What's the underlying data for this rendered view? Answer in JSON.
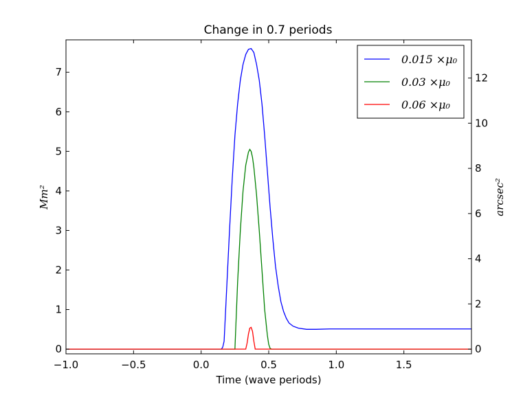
{
  "chart_data": {
    "type": "line",
    "title": "Change in 0.7 periods",
    "xlabel": "Time (wave periods)",
    "ylabel": "Mm²",
    "ylabel_right": "arcsec²",
    "xlim": [
      -1.0,
      2.0
    ],
    "ylim": [
      -0.12,
      7.82
    ],
    "ylim_right": [
      -0.21,
      13.69
    ],
    "x_ticks": [
      -1.0,
      -0.5,
      0.0,
      0.5,
      1.0,
      1.5
    ],
    "x_tick_labels": [
      "−1.0",
      "−0.5",
      "0.0",
      "0.5",
      "1.0",
      "1.5"
    ],
    "y_ticks": [
      0,
      1,
      2,
      3,
      4,
      5,
      6,
      7
    ],
    "y_tick_labels": [
      "0",
      "1",
      "2",
      "3",
      "4",
      "5",
      "6",
      "7"
    ],
    "y_right_ticks": [
      0,
      2,
      4,
      6,
      8,
      10,
      12
    ],
    "y_right_tick_labels": [
      "0",
      "2",
      "4",
      "6",
      "8",
      "10",
      "12"
    ],
    "grid": false,
    "legend_position": "top-right",
    "series": [
      {
        "name": "0.015 ×μ₀",
        "color": "#0000ff",
        "x": [
          -1.0,
          0.0,
          0.15,
          0.16,
          0.17,
          0.19,
          0.21,
          0.23,
          0.25,
          0.27,
          0.29,
          0.31,
          0.33,
          0.35,
          0.37,
          0.39,
          0.41,
          0.43,
          0.45,
          0.47,
          0.49,
          0.51,
          0.53,
          0.55,
          0.57,
          0.59,
          0.61,
          0.63,
          0.65,
          0.68,
          0.72,
          0.78,
          0.85,
          0.95,
          1.0,
          1.5,
          2.0
        ],
        "y": [
          0.0,
          0.0,
          0.0,
          0.05,
          0.2,
          1.6,
          3.0,
          4.3,
          5.4,
          6.2,
          6.8,
          7.2,
          7.45,
          7.58,
          7.6,
          7.5,
          7.2,
          6.8,
          6.2,
          5.4,
          4.5,
          3.6,
          2.8,
          2.1,
          1.6,
          1.2,
          0.95,
          0.78,
          0.66,
          0.58,
          0.53,
          0.5,
          0.5,
          0.51,
          0.51,
          0.51,
          0.51
        ]
      },
      {
        "name": "0.03 ×μ₀",
        "color": "#008000",
        "x": [
          -1.0,
          0.0,
          0.25,
          0.27,
          0.29,
          0.31,
          0.33,
          0.35,
          0.36,
          0.37,
          0.38,
          0.39,
          0.41,
          0.43,
          0.45,
          0.47,
          0.49,
          0.5,
          0.51,
          0.52,
          1.0,
          2.0
        ],
        "y": [
          0.0,
          0.0,
          0.0,
          1.7,
          3.0,
          4.0,
          4.65,
          4.98,
          5.05,
          5.0,
          4.85,
          4.6,
          3.9,
          3.0,
          2.0,
          1.0,
          0.35,
          0.12,
          0.02,
          0.0,
          0.0,
          0.0
        ]
      },
      {
        "name": "0.06 ×μ₀",
        "color": "#ff0000",
        "x": [
          -1.0,
          0.0,
          0.33,
          0.34,
          0.35,
          0.36,
          0.37,
          0.38,
          0.39,
          0.4,
          1.0,
          2.0
        ],
        "y": [
          0.0,
          0.0,
          0.0,
          0.15,
          0.38,
          0.53,
          0.55,
          0.45,
          0.2,
          0.0,
          0.0,
          0.0
        ]
      }
    ]
  }
}
